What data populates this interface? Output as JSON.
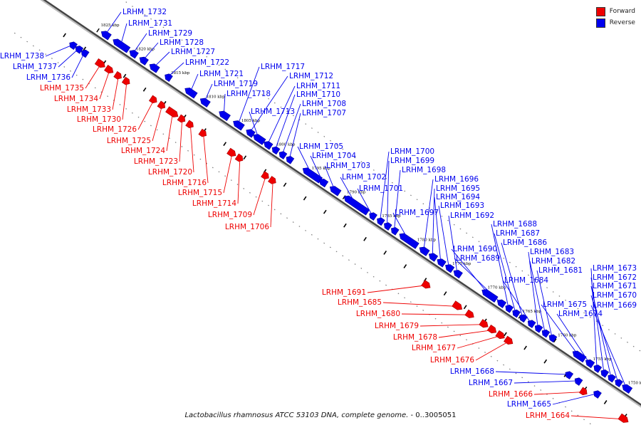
{
  "legend": {
    "forward": {
      "label": "Forward",
      "color": "#ee0000"
    },
    "reverse": {
      "label": "Reverse",
      "color": "#0000ee"
    }
  },
  "caption": {
    "species": "Lactobacillus rhamnosus ATCC 53103 DNA, complete genome.",
    "range": " - 0..3005051"
  },
  "ticks": [
    {
      "label": "1825 kbp",
      "kbp": 1825
    },
    {
      "label": "1820 kbp",
      "kbp": 1820
    },
    {
      "label": "1815 kbp",
      "kbp": 1815
    },
    {
      "label": "1810 kbp",
      "kbp": 1810
    },
    {
      "label": "1805 kbp",
      "kbp": 1805
    },
    {
      "label": "1800 kbp",
      "kbp": 1800
    },
    {
      "label": "1795 kbp",
      "kbp": 1795
    },
    {
      "label": "1790 kbp",
      "kbp": 1790
    },
    {
      "label": "1785 kbp",
      "kbp": 1785
    },
    {
      "label": "1780 kbp",
      "kbp": 1780
    },
    {
      "label": "1775 kbp",
      "kbp": 1775
    },
    {
      "label": "1770 kbp",
      "kbp": 1770
    },
    {
      "label": "1765 kbp",
      "kbp": 1765
    },
    {
      "label": "1760 kbp",
      "kbp": 1760
    },
    {
      "label": "1755 kbp",
      "kbp": 1755
    },
    {
      "label": "1750 kbp",
      "kbp": 1750
    }
  ],
  "genes": [
    {
      "id": "LRHM_1732",
      "strand": "reverse"
    },
    {
      "id": "LRHM_1731",
      "strand": "reverse"
    },
    {
      "id": "LRHM_1729",
      "strand": "reverse"
    },
    {
      "id": "LRHM_1728",
      "strand": "reverse"
    },
    {
      "id": "LRHM_1727",
      "strand": "reverse"
    },
    {
      "id": "LRHM_1722",
      "strand": "reverse"
    },
    {
      "id": "LRHM_1721",
      "strand": "reverse"
    },
    {
      "id": "LRHM_1719",
      "strand": "reverse"
    },
    {
      "id": "LRHM_1718",
      "strand": "reverse"
    },
    {
      "id": "LRHM_1717",
      "strand": "reverse"
    },
    {
      "id": "LRHM_1712",
      "strand": "reverse"
    },
    {
      "id": "LRHM_1711",
      "strand": "reverse"
    },
    {
      "id": "LRHM_1710",
      "strand": "reverse"
    },
    {
      "id": "LRHM_1713",
      "strand": "reverse"
    },
    {
      "id": "LRHM_1708",
      "strand": "reverse"
    },
    {
      "id": "LRHM_1707",
      "strand": "reverse"
    },
    {
      "id": "LRHM_1705",
      "strand": "reverse"
    },
    {
      "id": "LRHM_1704",
      "strand": "reverse"
    },
    {
      "id": "LRHM_1703",
      "strand": "reverse"
    },
    {
      "id": "LRHM_1700",
      "strand": "reverse"
    },
    {
      "id": "LRHM_1699",
      "strand": "reverse"
    },
    {
      "id": "LRHM_1698",
      "strand": "reverse"
    },
    {
      "id": "LRHM_1702",
      "strand": "reverse"
    },
    {
      "id": "LRHM_1701",
      "strand": "reverse"
    },
    {
      "id": "LRHM_1696",
      "strand": "reverse"
    },
    {
      "id": "LRHM_1695",
      "strand": "reverse"
    },
    {
      "id": "LRHM_1694",
      "strand": "reverse"
    },
    {
      "id": "LRHM_1693",
      "strand": "reverse"
    },
    {
      "id": "LRHM_1697",
      "strand": "reverse"
    },
    {
      "id": "LRHM_1692",
      "strand": "reverse"
    },
    {
      "id": "LRHM_1688",
      "strand": "reverse"
    },
    {
      "id": "LRHM_1687",
      "strand": "reverse"
    },
    {
      "id": "LRHM_1686",
      "strand": "reverse"
    },
    {
      "id": "LRHM_1690",
      "strand": "reverse"
    },
    {
      "id": "LRHM_1683",
      "strand": "reverse"
    },
    {
      "id": "LRHM_1689",
      "strand": "reverse"
    },
    {
      "id": "LRHM_1682",
      "strand": "reverse"
    },
    {
      "id": "LRHM_1681",
      "strand": "reverse"
    },
    {
      "id": "LRHM_1684",
      "strand": "reverse"
    },
    {
      "id": "LRHM_1673",
      "strand": "reverse"
    },
    {
      "id": "LRHM_1672",
      "strand": "reverse"
    },
    {
      "id": "LRHM_1671",
      "strand": "reverse"
    },
    {
      "id": "LRHM_1670",
      "strand": "reverse"
    },
    {
      "id": "LRHM_1675",
      "strand": "reverse"
    },
    {
      "id": "LRHM_1669",
      "strand": "reverse"
    },
    {
      "id": "LRHM_1674",
      "strand": "reverse"
    },
    {
      "id": "LRHM_1738",
      "strand": "reverse"
    },
    {
      "id": "LRHM_1737",
      "strand": "reverse"
    },
    {
      "id": "LRHM_1736",
      "strand": "reverse"
    },
    {
      "id": "LRHM_1735",
      "strand": "forward"
    },
    {
      "id": "LRHM_1734",
      "strand": "forward"
    },
    {
      "id": "LRHM_1733",
      "strand": "forward"
    },
    {
      "id": "LRHM_1730",
      "strand": "forward"
    },
    {
      "id": "LRHM_1726",
      "strand": "forward"
    },
    {
      "id": "LRHM_1725",
      "strand": "forward"
    },
    {
      "id": "LRHM_1724",
      "strand": "forward"
    },
    {
      "id": "LRHM_1723",
      "strand": "forward"
    },
    {
      "id": "LRHM_1720",
      "strand": "forward"
    },
    {
      "id": "LRHM_1716",
      "strand": "forward"
    },
    {
      "id": "LRHM_1715",
      "strand": "forward"
    },
    {
      "id": "LRHM_1714",
      "strand": "forward"
    },
    {
      "id": "LRHM_1709",
      "strand": "forward"
    },
    {
      "id": "LRHM_1706",
      "strand": "forward"
    },
    {
      "id": "LRHM_1691",
      "strand": "forward"
    },
    {
      "id": "LRHM_1685",
      "strand": "forward"
    },
    {
      "id": "LRHM_1680",
      "strand": "forward"
    },
    {
      "id": "LRHM_1679",
      "strand": "forward"
    },
    {
      "id": "LRHM_1678",
      "strand": "forward"
    },
    {
      "id": "LRHM_1677",
      "strand": "forward"
    },
    {
      "id": "LRHM_1676",
      "strand": "forward"
    },
    {
      "id": "LRHM_1668",
      "strand": "reverse"
    },
    {
      "id": "LRHM_1667",
      "strand": "reverse"
    },
    {
      "id": "LRHM_1666",
      "strand": "forward"
    },
    {
      "id": "LRHM_1665",
      "strand": "reverse"
    },
    {
      "id": "LRHM_1664",
      "strand": "forward"
    }
  ]
}
